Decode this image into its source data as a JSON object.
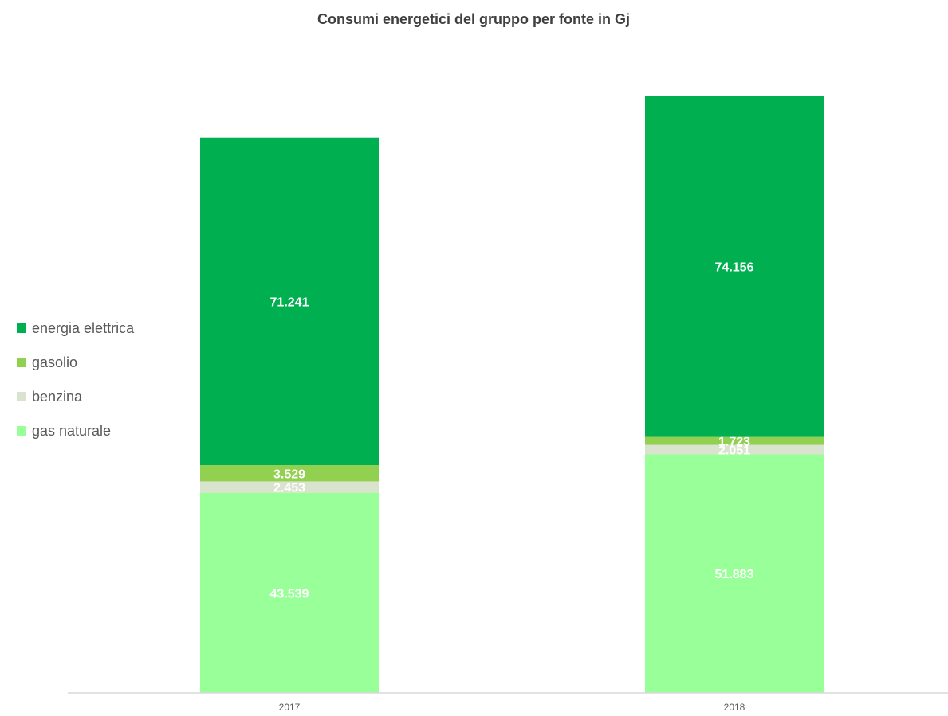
{
  "chart_data": {
    "type": "bar",
    "stacked": true,
    "title": "Consumi energetici del gruppo per fonte in Gj",
    "xlabel": "",
    "ylabel": "",
    "categories": [
      "2017",
      "2018"
    ],
    "series": [
      {
        "name": "gas naturale",
        "values": [
          43539,
          51883
        ],
        "labels": [
          "43.539",
          "51.883"
        ],
        "color": "#99ff99"
      },
      {
        "name": "benzina",
        "values": [
          2453,
          2051
        ],
        "labels": [
          "2.453",
          "2.051"
        ],
        "color": "#d9e3cd"
      },
      {
        "name": "gasolio",
        "values": [
          3529,
          1723
        ],
        "labels": [
          "3.529",
          "1.723"
        ],
        "color": "#92d050"
      },
      {
        "name": "energia elettrica",
        "values": [
          71241,
          74156
        ],
        "labels": [
          "71.241",
          "74.156"
        ],
        "color": "#00b050"
      }
    ],
    "legend_order": [
      "energia elettrica",
      "gasolio",
      "benzina",
      "gas naturale"
    ],
    "legend_position": "left",
    "gridlines": false,
    "y_axis_visible": false
  }
}
